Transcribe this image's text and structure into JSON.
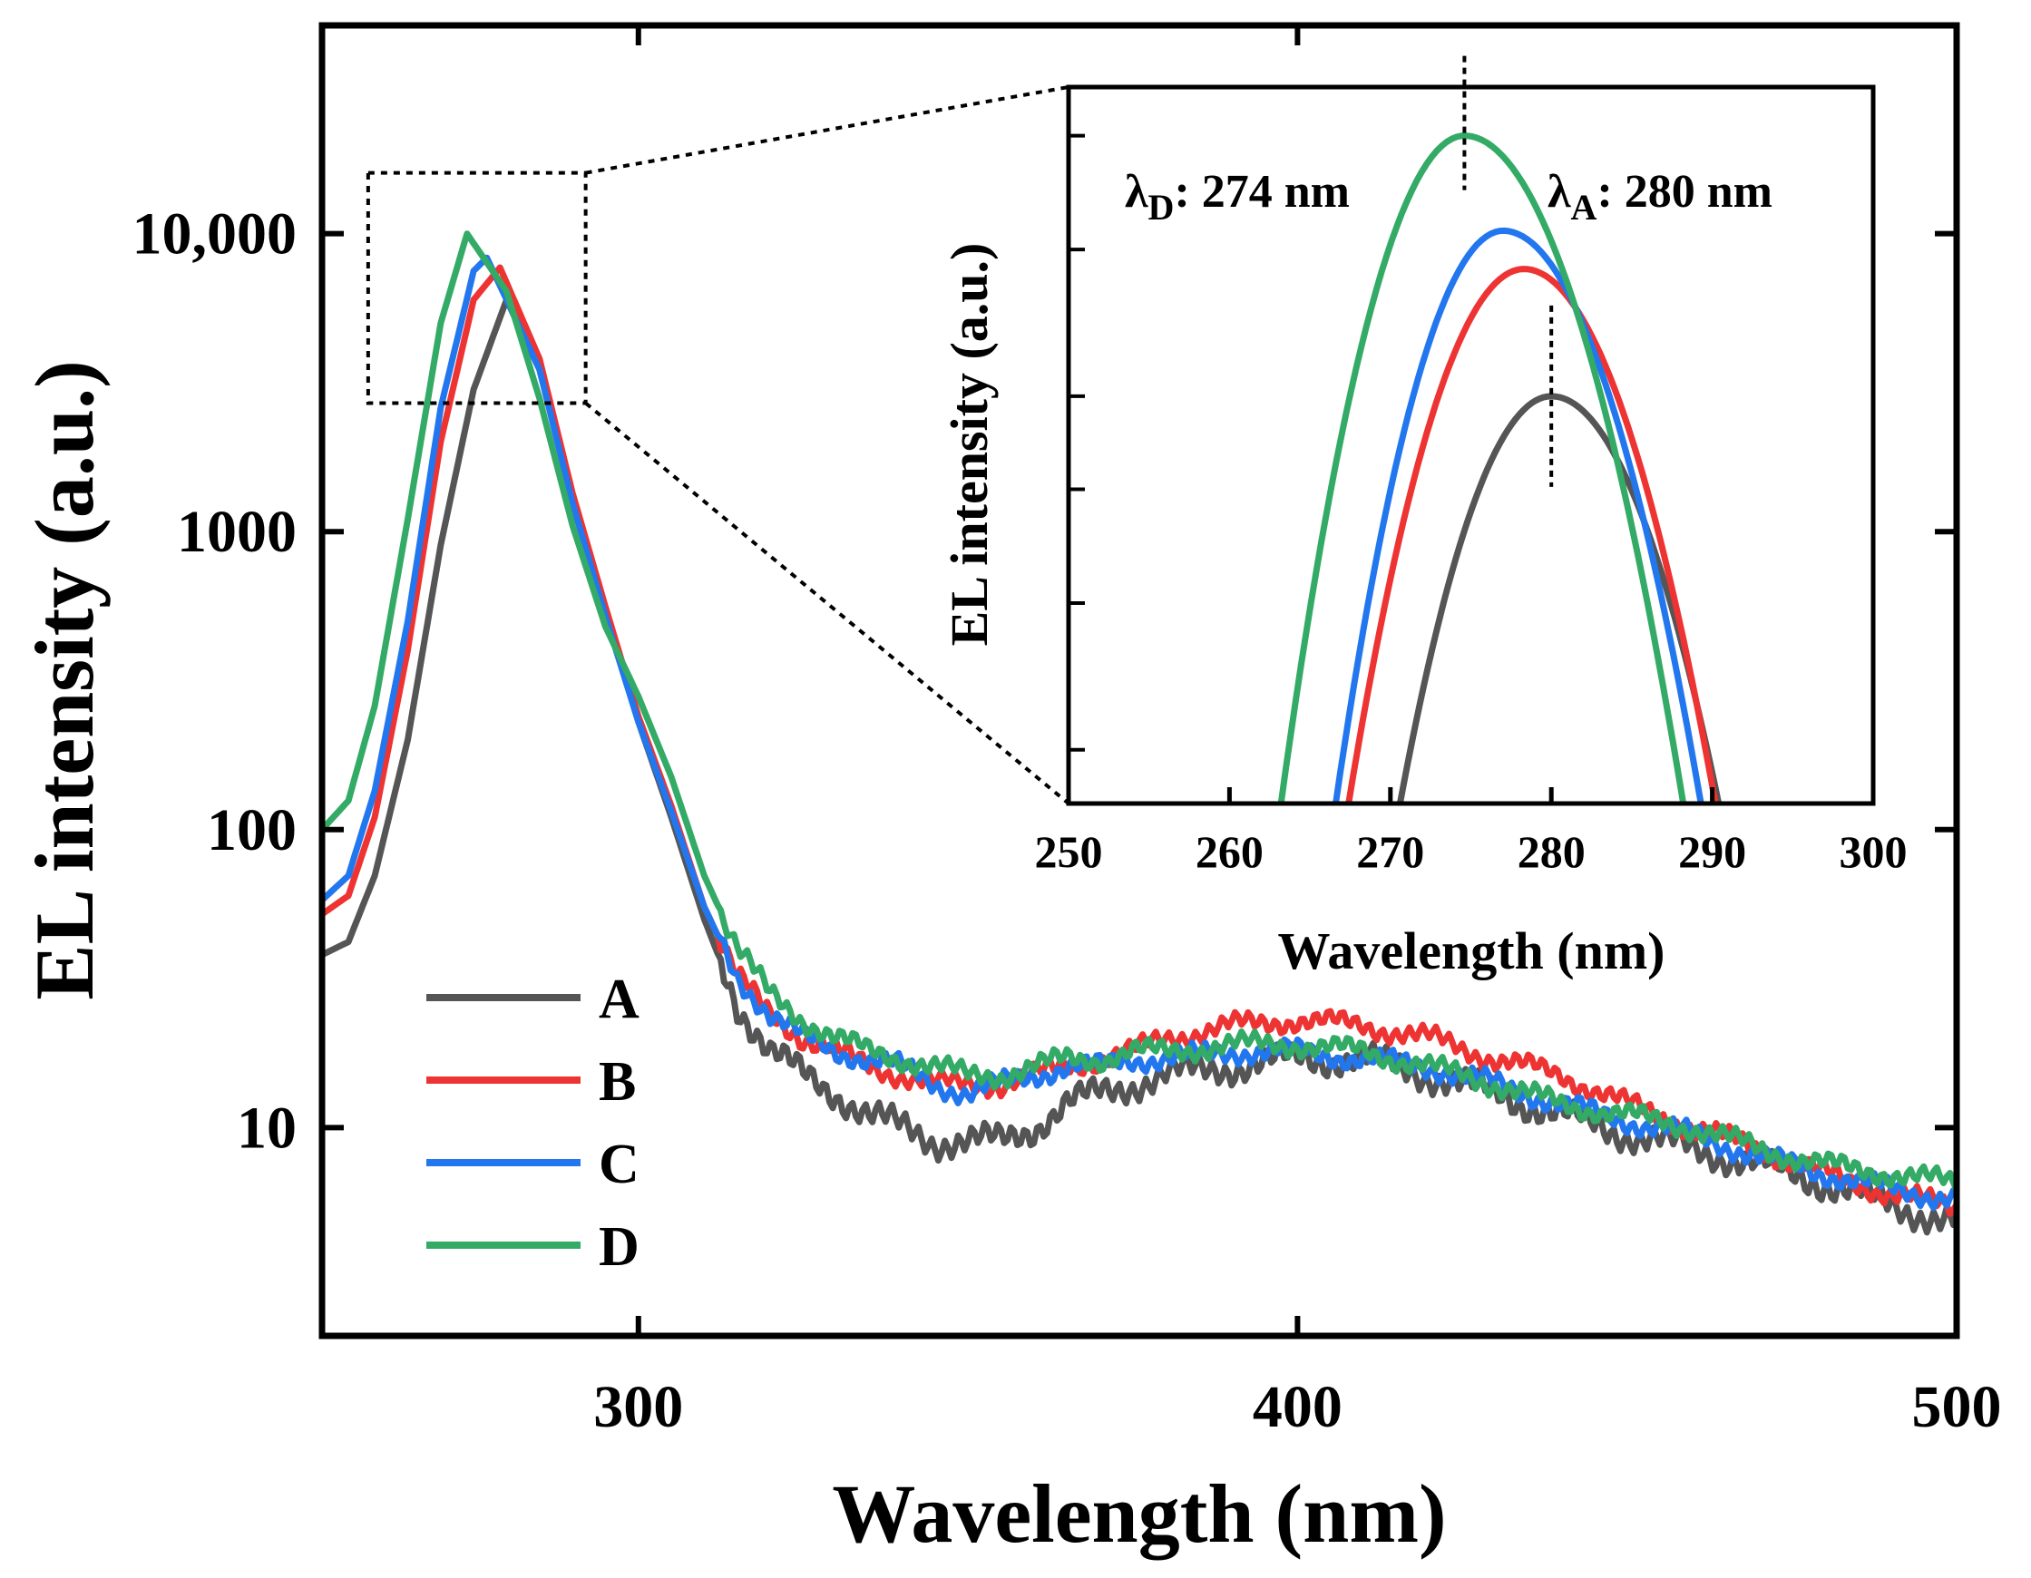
{
  "chart_data": {
    "main": {
      "type": "line",
      "title": "",
      "xlabel": "Wavelength (nm)",
      "ylabel": "EL intensity (a.u.)",
      "xscale": "linear",
      "yscale": "log",
      "xlim": [
        252,
        500
      ],
      "ylim": [
        2,
        50000
      ],
      "xticks": [
        300,
        400,
        500
      ],
      "xtick_labels": [
        "300",
        "400",
        "500"
      ],
      "yticks": [
        10,
        100,
        1000,
        10000
      ],
      "ytick_labels": [
        "10",
        "100",
        "1000",
        "10,000"
      ],
      "legend": {
        "position": "bottom-left",
        "entries": [
          "A",
          "B",
          "C",
          "D"
        ]
      },
      "series": [
        {
          "name": "A",
          "color": "#555555",
          "x": [
            252,
            256,
            260,
            265,
            270,
            275,
            280,
            285,
            290,
            295,
            300,
            305,
            310,
            315,
            320,
            325,
            330,
            335,
            340,
            345,
            350,
            355,
            360,
            365,
            370,
            375,
            380,
            390,
            400,
            410,
            420,
            430,
            440,
            450,
            460,
            470,
            480,
            490,
            500
          ],
          "y": [
            38,
            42,
            70,
            200,
            900,
            3000,
            6000,
            3500,
            1300,
            550,
            230,
            110,
            50,
            26,
            18,
            15,
            13,
            11,
            10,
            9,
            9,
            9,
            10,
            12,
            13,
            14,
            15,
            16,
            17,
            17,
            15,
            13,
            11,
            9.5,
            8.5,
            7.5,
            6.5,
            5.5,
            4.8
          ]
        },
        {
          "name": "B",
          "color": "#ee3333",
          "x": [
            252,
            256,
            260,
            265,
            270,
            275,
            279,
            285,
            290,
            295,
            300,
            305,
            310,
            315,
            320,
            325,
            330,
            335,
            340,
            345,
            350,
            355,
            360,
            365,
            370,
            375,
            380,
            390,
            400,
            410,
            420,
            430,
            440,
            450,
            460,
            470,
            480,
            490,
            500
          ],
          "y": [
            52,
            60,
            110,
            400,
            2000,
            6000,
            7700,
            3800,
            1350,
            560,
            240,
            120,
            55,
            32,
            24,
            20,
            18,
            16,
            15,
            14,
            14,
            14,
            15,
            16,
            17,
            18,
            20,
            22,
            23,
            22,
            20,
            17,
            15,
            12,
            10,
            8.5,
            7,
            6,
            5.4
          ]
        },
        {
          "name": "C",
          "color": "#2277ee",
          "x": [
            252,
            256,
            260,
            265,
            270,
            275,
            277,
            285,
            290,
            295,
            300,
            305,
            310,
            315,
            320,
            325,
            330,
            335,
            340,
            345,
            350,
            355,
            360,
            365,
            370,
            375,
            380,
            390,
            400,
            410,
            420,
            430,
            440,
            450,
            460,
            470,
            480,
            490,
            500
          ],
          "y": [
            58,
            70,
            135,
            500,
            2600,
            7500,
            8300,
            3500,
            1250,
            520,
            230,
            115,
            55,
            32,
            24,
            20,
            18,
            17,
            16,
            14,
            13,
            14,
            15,
            16,
            16,
            17,
            17,
            18,
            18,
            17,
            16,
            14,
            12,
            10.5,
            9.5,
            8,
            7,
            6.2,
            5.8
          ]
        },
        {
          "name": "D",
          "color": "#33aa66",
          "x": [
            252,
            256,
            260,
            265,
            270,
            274,
            280,
            285,
            290,
            295,
            300,
            305,
            310,
            315,
            320,
            325,
            330,
            335,
            340,
            345,
            350,
            355,
            360,
            365,
            370,
            375,
            380,
            390,
            400,
            410,
            420,
            430,
            440,
            450,
            460,
            470,
            480,
            490,
            500
          ],
          "y": [
            100,
            125,
            260,
            1100,
            5000,
            10000,
            6400,
            2800,
            1050,
            480,
            280,
            150,
            70,
            40,
            28,
            23,
            20,
            18,
            17,
            16,
            15,
            15,
            16,
            17,
            17,
            18,
            18,
            19,
            19,
            18,
            16,
            14,
            12,
            11,
            10,
            8.5,
            7.5,
            7,
            6.5
          ]
        }
      ]
    },
    "inset": {
      "type": "line",
      "xlabel": "Wavelength (nm)",
      "ylabel": "EL intensity (a.u.)",
      "xlim": [
        250,
        300
      ],
      "ylim": [
        2700,
        11000
      ],
      "yscale": "log",
      "xticks": [
        250,
        260,
        270,
        280,
        290,
        300
      ],
      "xtick_labels": [
        "250",
        "260",
        "270",
        "280",
        "290",
        "300"
      ],
      "annotations": [
        {
          "symbol": "λ",
          "sub": "D",
          "text": ": 274 nm",
          "x": 274.6
        },
        {
          "symbol": "λ",
          "sub": "A",
          "text": ": 280 nm",
          "x": 280
        }
      ],
      "series": [
        {
          "name": "A",
          "color": "#555555",
          "peak_x": 280.0,
          "peak_y": 6000,
          "left_edge": 270.6,
          "right_edge": 290.4
        },
        {
          "name": "B",
          "color": "#ee3333",
          "peak_x": 278.3,
          "peak_y": 7700,
          "left_edge": 267.4,
          "right_edge": 290.2
        },
        {
          "name": "C",
          "color": "#2277ee",
          "peak_x": 277.0,
          "peak_y": 8300,
          "left_edge": 266.6,
          "right_edge": 289.3
        },
        {
          "name": "D",
          "color": "#33aa66",
          "peak_x": 274.6,
          "peak_y": 10000,
          "left_edge": 263.2,
          "right_edge": 288.2
        }
      ]
    },
    "zoom_box": {
      "x_range": [
        259,
        292
      ],
      "y_range": [
        2700,
        16000
      ]
    }
  }
}
